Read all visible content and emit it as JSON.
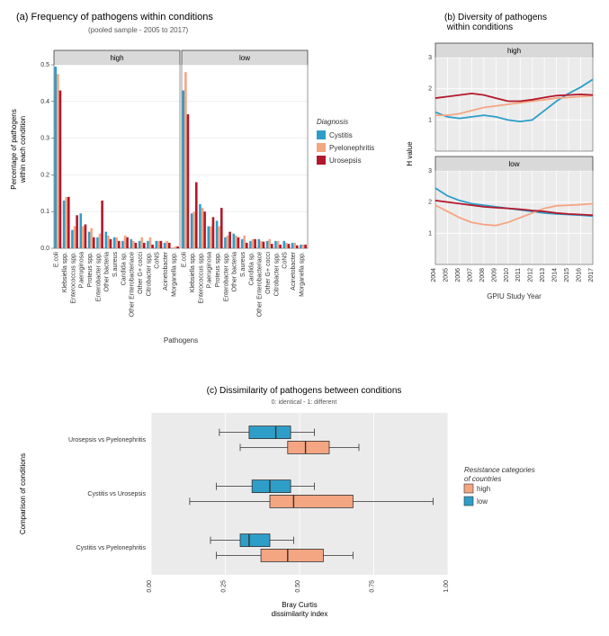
{
  "panelA": {
    "title": "(a) Frequency of pathogens within conditions",
    "subtitle": "(pooled sample - 2005 to 2017)",
    "ylabel": "Percentage of pathogens\nwithin each condition",
    "xlabel": "Pathogens",
    "ylim": [
      0,
      0.5
    ],
    "yticks": [
      0.0,
      0.1,
      0.2,
      0.3,
      0.4,
      0.5
    ],
    "facets": [
      "high",
      "low"
    ],
    "pathogens": [
      "E.coli",
      "Klebsiella spp.",
      "Enterococcus spp.",
      "P.aeruginosa",
      "Proteus spp.",
      "Enterobacter spp.",
      "Other bacteria",
      "S.aureus",
      "Candida sp.",
      "Other Enterobacteriace",
      "Other G+ cocci",
      "Citrobacter spp.",
      "CoNS",
      "Acinetobacter",
      "Morganella spp."
    ],
    "legend_title": "Diagnosis",
    "series": [
      {
        "name": "Cystitis",
        "color": "#2e9ec8"
      },
      {
        "name": "Pyelonephritis",
        "color": "#f4a582"
      },
      {
        "name": "Urosepsis",
        "color": "#b2182b"
      }
    ],
    "data": {
      "high": {
        "Cystitis": [
          0.495,
          0.13,
          0.05,
          0.095,
          0.045,
          0.03,
          0.045,
          0.03,
          0.02,
          0.025,
          0.02,
          0.02,
          0.02,
          0.015,
          0.0
        ],
        "Pyelonephritis": [
          0.475,
          0.14,
          0.06,
          0.06,
          0.055,
          0.04,
          0.035,
          0.03,
          0.035,
          0.02,
          0.03,
          0.03,
          0.02,
          0.02,
          0.005
        ],
        "Urosepsis": [
          0.43,
          0.14,
          0.09,
          0.065,
          0.03,
          0.13,
          0.025,
          0.02,
          0.03,
          0.015,
          0.015,
          0.01,
          0.02,
          0.015,
          0.005
        ]
      },
      "low": {
        "Cystitis": [
          0.43,
          0.095,
          0.12,
          0.06,
          0.075,
          0.03,
          0.04,
          0.025,
          0.02,
          0.025,
          0.02,
          0.02,
          0.02,
          0.015,
          0.01
        ],
        "Pyelonephritis": [
          0.48,
          0.1,
          0.11,
          0.06,
          0.06,
          0.035,
          0.035,
          0.035,
          0.025,
          0.02,
          0.025,
          0.02,
          0.015,
          0.015,
          0.01
        ],
        "Urosepsis": [
          0.365,
          0.18,
          0.1,
          0.085,
          0.11,
          0.045,
          0.03,
          0.015,
          0.025,
          0.018,
          0.012,
          0.01,
          0.012,
          0.008,
          0.01
        ]
      }
    }
  },
  "panelB": {
    "title": "(b) Diversity of pathogens\n      within conditions",
    "ylabel": "H value",
    "xlabel": "GPIU Study Year",
    "xlim": [
      2004,
      2017
    ],
    "xticks": [
      2004,
      2005,
      2006,
      2007,
      2008,
      2009,
      2010,
      2011,
      2012,
      2013,
      2014,
      2015,
      2016,
      2017
    ],
    "ylim": [
      0,
      3
    ],
    "yticks": [
      1,
      2,
      3
    ],
    "facets": [
      "high",
      "low"
    ],
    "series": [
      {
        "name": "Cystitis",
        "color": "#2e9ec8"
      },
      {
        "name": "Pyelonephritis",
        "color": "#f4a582"
      },
      {
        "name": "Urosepsis",
        "color": "#b2182b"
      }
    ],
    "data": {
      "high": {
        "Cystitis": [
          1.25,
          1.1,
          1.05,
          1.1,
          1.15,
          1.1,
          1.0,
          0.95,
          1.0,
          1.3,
          1.6,
          1.85,
          2.05,
          2.3
        ],
        "Pyelonephritis": [
          1.15,
          1.15,
          1.2,
          1.3,
          1.4,
          1.45,
          1.5,
          1.55,
          1.6,
          1.65,
          1.7,
          1.72,
          1.75,
          1.78
        ],
        "Urosepsis": [
          1.7,
          1.75,
          1.8,
          1.85,
          1.8,
          1.7,
          1.6,
          1.6,
          1.65,
          1.72,
          1.78,
          1.8,
          1.82,
          1.8
        ]
      },
      "low": {
        "Cystitis": [
          2.45,
          2.2,
          2.05,
          1.95,
          1.9,
          1.85,
          1.8,
          1.75,
          1.7,
          1.65,
          1.62,
          1.6,
          1.58,
          1.55
        ],
        "Pyelonephritis": [
          1.9,
          1.7,
          1.5,
          1.35,
          1.28,
          1.25,
          1.35,
          1.5,
          1.65,
          1.8,
          1.88,
          1.9,
          1.92,
          1.95
        ],
        "Urosepsis": [
          2.05,
          2.0,
          1.95,
          1.9,
          1.85,
          1.82,
          1.8,
          1.77,
          1.73,
          1.7,
          1.65,
          1.62,
          1.6,
          1.58
        ]
      }
    }
  },
  "panelC": {
    "title": "(c) Dissimilarity of pathogens between conditions",
    "subtitle": "0: identical - 1: different",
    "xlabel": "Bray Curtis\ndissimilarity index",
    "ylabel": "Comparison of conditions",
    "xlim": [
      0,
      1
    ],
    "xticks": [
      0.0,
      0.25,
      0.5,
      0.75,
      1.0
    ],
    "comparisons": [
      "Urosepsis vs Pyelonephritis",
      "Cystitis vs Urosepsis",
      "Cystitis vs Pyelonephritis"
    ],
    "legend_title": "Resistance categories\nof countries",
    "categories": [
      {
        "name": "high",
        "color": "#f4a582"
      },
      {
        "name": "low",
        "color": "#2e9ec8"
      }
    ],
    "boxes": {
      "Urosepsis vs Pyelonephritis": {
        "low": {
          "min": 0.23,
          "q1": 0.33,
          "med": 0.42,
          "q3": 0.47,
          "max": 0.55
        },
        "high": {
          "min": 0.3,
          "q1": 0.46,
          "med": 0.52,
          "q3": 0.6,
          "max": 0.7
        }
      },
      "Cystitis vs Urosepsis": {
        "low": {
          "min": 0.22,
          "q1": 0.34,
          "med": 0.4,
          "q3": 0.47,
          "max": 0.55
        },
        "high": {
          "min": 0.13,
          "q1": 0.4,
          "med": 0.48,
          "q3": 0.68,
          "max": 0.95
        }
      },
      "Cystitis vs Pyelonephritis": {
        "low": {
          "min": 0.2,
          "q1": 0.3,
          "med": 0.33,
          "q3": 0.4,
          "max": 0.48
        },
        "high": {
          "min": 0.22,
          "q1": 0.37,
          "med": 0.46,
          "q3": 0.58,
          "max": 0.68
        }
      }
    }
  }
}
